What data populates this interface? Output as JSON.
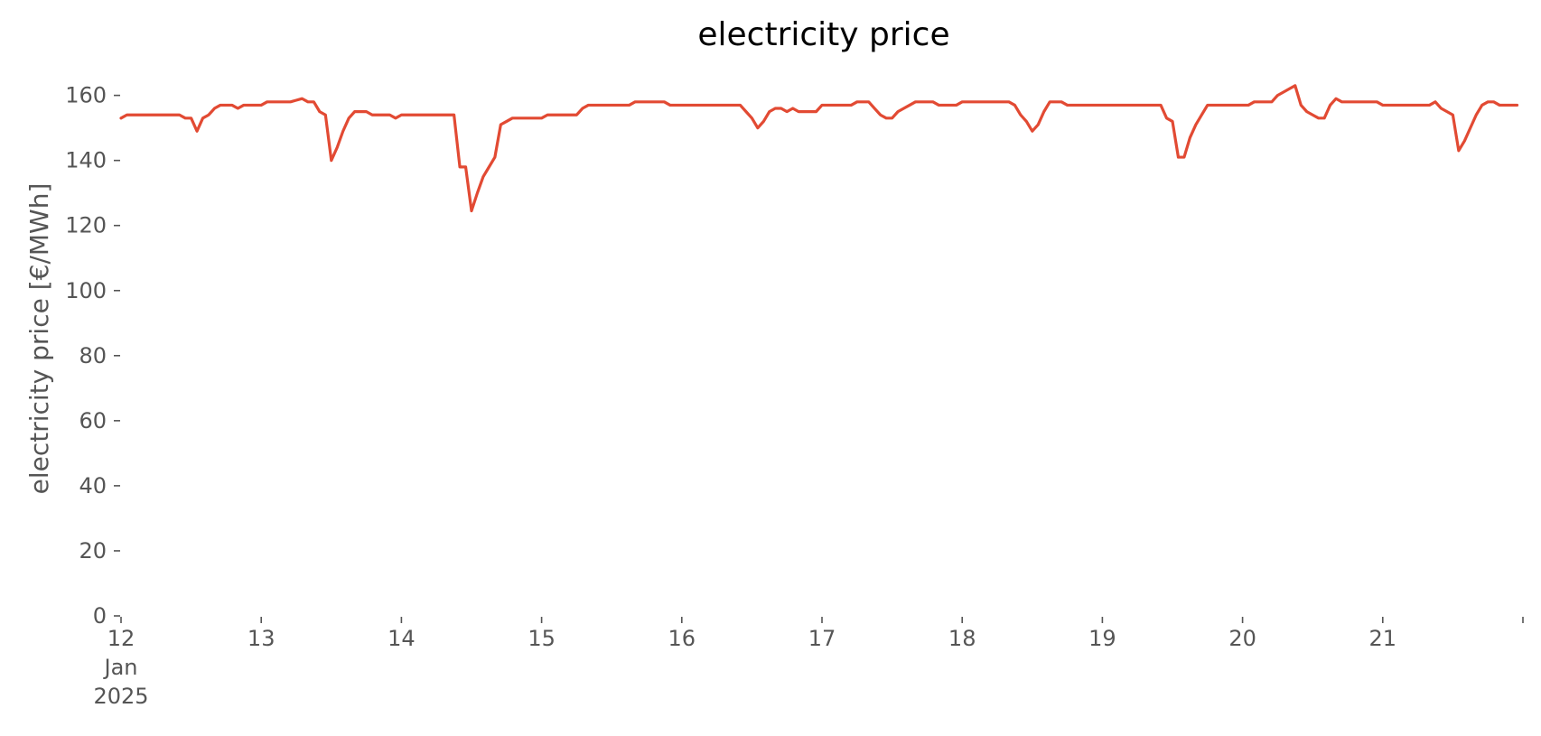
{
  "chart_data": {
    "type": "line",
    "title": "electricity price",
    "xlabel": "",
    "ylabel": "electricity price [€/MWh]",
    "xlim": [
      "2025-01-12",
      "2025-01-22"
    ],
    "ylim": [
      0,
      166
    ],
    "x_ticks": [
      {
        "value": "2025-01-12",
        "label": "12",
        "sublabels": [
          "Jan",
          "2025"
        ]
      },
      {
        "value": "2025-01-13",
        "label": "13"
      },
      {
        "value": "2025-01-14",
        "label": "14"
      },
      {
        "value": "2025-01-15",
        "label": "15"
      },
      {
        "value": "2025-01-16",
        "label": "16"
      },
      {
        "value": "2025-01-17",
        "label": "17"
      },
      {
        "value": "2025-01-18",
        "label": "18"
      },
      {
        "value": "2025-01-19",
        "label": "19"
      },
      {
        "value": "2025-01-20",
        "label": "20"
      },
      {
        "value": "2025-01-21",
        "label": "21"
      },
      {
        "value": "2025-01-22",
        "label": ""
      }
    ],
    "y_ticks": [
      0,
      20,
      40,
      60,
      80,
      100,
      120,
      140,
      160
    ],
    "grid": false,
    "colors": {
      "line": "#E24A33"
    },
    "series": [
      {
        "x": [
          "2025-01-12 00:00",
          "2025-01-12 01:00",
          "2025-01-12 02:00",
          "2025-01-12 03:00",
          "2025-01-12 04:00",
          "2025-01-12 05:00",
          "2025-01-12 06:00",
          "2025-01-12 07:00",
          "2025-01-12 08:00",
          "2025-01-12 09:00",
          "2025-01-12 10:00",
          "2025-01-12 11:00",
          "2025-01-12 12:00",
          "2025-01-12 13:00",
          "2025-01-12 14:00",
          "2025-01-12 15:00",
          "2025-01-12 16:00",
          "2025-01-12 17:00",
          "2025-01-12 18:00",
          "2025-01-12 19:00",
          "2025-01-12 20:00",
          "2025-01-12 21:00",
          "2025-01-12 22:00",
          "2025-01-12 23:00",
          "2025-01-13 00:00",
          "2025-01-13 01:00",
          "2025-01-13 02:00",
          "2025-01-13 03:00",
          "2025-01-13 04:00",
          "2025-01-13 05:00",
          "2025-01-13 06:00",
          "2025-01-13 07:00",
          "2025-01-13 08:00",
          "2025-01-13 09:00",
          "2025-01-13 10:00",
          "2025-01-13 11:00",
          "2025-01-13 12:00",
          "2025-01-13 13:00",
          "2025-01-13 14:00",
          "2025-01-13 15:00",
          "2025-01-13 16:00",
          "2025-01-13 17:00",
          "2025-01-13 18:00",
          "2025-01-13 19:00",
          "2025-01-13 20:00",
          "2025-01-13 21:00",
          "2025-01-13 22:00",
          "2025-01-13 23:00",
          "2025-01-14 00:00",
          "2025-01-14 01:00",
          "2025-01-14 02:00",
          "2025-01-14 03:00",
          "2025-01-14 04:00",
          "2025-01-14 05:00",
          "2025-01-14 06:00",
          "2025-01-14 07:00",
          "2025-01-14 08:00",
          "2025-01-14 09:00",
          "2025-01-14 10:00",
          "2025-01-14 11:00",
          "2025-01-14 12:00",
          "2025-01-14 13:00",
          "2025-01-14 14:00",
          "2025-01-14 15:00",
          "2025-01-14 16:00",
          "2025-01-14 17:00",
          "2025-01-14 18:00",
          "2025-01-14 19:00",
          "2025-01-14 20:00",
          "2025-01-14 21:00",
          "2025-01-14 22:00",
          "2025-01-14 23:00",
          "2025-01-15 00:00",
          "2025-01-15 01:00",
          "2025-01-15 02:00",
          "2025-01-15 03:00",
          "2025-01-15 04:00",
          "2025-01-15 05:00",
          "2025-01-15 06:00",
          "2025-01-15 07:00",
          "2025-01-15 08:00",
          "2025-01-15 09:00",
          "2025-01-15 10:00",
          "2025-01-15 11:00",
          "2025-01-15 12:00",
          "2025-01-15 13:00",
          "2025-01-15 14:00",
          "2025-01-15 15:00",
          "2025-01-15 16:00",
          "2025-01-15 17:00",
          "2025-01-15 18:00",
          "2025-01-15 19:00",
          "2025-01-15 20:00",
          "2025-01-15 21:00",
          "2025-01-15 22:00",
          "2025-01-15 23:00",
          "2025-01-16 00:00",
          "2025-01-16 01:00",
          "2025-01-16 02:00",
          "2025-01-16 03:00",
          "2025-01-16 04:00",
          "2025-01-16 05:00",
          "2025-01-16 06:00",
          "2025-01-16 07:00",
          "2025-01-16 08:00",
          "2025-01-16 09:00",
          "2025-01-16 10:00",
          "2025-01-16 11:00",
          "2025-01-16 12:00",
          "2025-01-16 13:00",
          "2025-01-16 14:00",
          "2025-01-16 15:00",
          "2025-01-16 16:00",
          "2025-01-16 17:00",
          "2025-01-16 18:00",
          "2025-01-16 19:00",
          "2025-01-16 20:00",
          "2025-01-16 21:00",
          "2025-01-16 22:00",
          "2025-01-16 23:00",
          "2025-01-17 00:00",
          "2025-01-17 01:00",
          "2025-01-17 02:00",
          "2025-01-17 03:00",
          "2025-01-17 04:00",
          "2025-01-17 05:00",
          "2025-01-17 06:00",
          "2025-01-17 07:00",
          "2025-01-17 08:00",
          "2025-01-17 09:00",
          "2025-01-17 10:00",
          "2025-01-17 11:00",
          "2025-01-17 12:00",
          "2025-01-17 13:00",
          "2025-01-17 14:00",
          "2025-01-17 15:00",
          "2025-01-17 16:00",
          "2025-01-17 17:00",
          "2025-01-17 18:00",
          "2025-01-17 19:00",
          "2025-01-17 20:00",
          "2025-01-17 21:00",
          "2025-01-17 22:00",
          "2025-01-17 23:00",
          "2025-01-18 00:00",
          "2025-01-18 01:00",
          "2025-01-18 02:00",
          "2025-01-18 03:00",
          "2025-01-18 04:00",
          "2025-01-18 05:00",
          "2025-01-18 06:00",
          "2025-01-18 07:00",
          "2025-01-18 08:00",
          "2025-01-18 09:00",
          "2025-01-18 10:00",
          "2025-01-18 11:00",
          "2025-01-18 12:00",
          "2025-01-18 13:00",
          "2025-01-18 14:00",
          "2025-01-18 15:00",
          "2025-01-18 16:00",
          "2025-01-18 17:00",
          "2025-01-18 18:00",
          "2025-01-18 19:00",
          "2025-01-18 20:00",
          "2025-01-18 21:00",
          "2025-01-18 22:00",
          "2025-01-18 23:00",
          "2025-01-19 00:00",
          "2025-01-19 01:00",
          "2025-01-19 02:00",
          "2025-01-19 03:00",
          "2025-01-19 04:00",
          "2025-01-19 05:00",
          "2025-01-19 06:00",
          "2025-01-19 07:00",
          "2025-01-19 08:00",
          "2025-01-19 09:00",
          "2025-01-19 10:00",
          "2025-01-19 11:00",
          "2025-01-19 12:00",
          "2025-01-19 13:00",
          "2025-01-19 14:00",
          "2025-01-19 15:00",
          "2025-01-19 16:00",
          "2025-01-19 17:00",
          "2025-01-19 18:00",
          "2025-01-19 19:00",
          "2025-01-19 20:00",
          "2025-01-19 21:00",
          "2025-01-19 22:00",
          "2025-01-19 23:00",
          "2025-01-20 00:00",
          "2025-01-20 01:00",
          "2025-01-20 02:00",
          "2025-01-20 03:00",
          "2025-01-20 04:00",
          "2025-01-20 05:00",
          "2025-01-20 06:00",
          "2025-01-20 07:00",
          "2025-01-20 08:00",
          "2025-01-20 09:00",
          "2025-01-20 10:00",
          "2025-01-20 11:00",
          "2025-01-20 12:00",
          "2025-01-20 13:00",
          "2025-01-20 14:00",
          "2025-01-20 15:00",
          "2025-01-20 16:00",
          "2025-01-20 17:00",
          "2025-01-20 18:00",
          "2025-01-20 19:00",
          "2025-01-20 20:00",
          "2025-01-20 21:00",
          "2025-01-20 22:00",
          "2025-01-20 23:00",
          "2025-01-21 00:00",
          "2025-01-21 01:00",
          "2025-01-21 02:00",
          "2025-01-21 03:00",
          "2025-01-21 04:00",
          "2025-01-21 05:00",
          "2025-01-21 06:00",
          "2025-01-21 07:00",
          "2025-01-21 08:00",
          "2025-01-21 09:00",
          "2025-01-21 10:00",
          "2025-01-21 11:00",
          "2025-01-21 12:00",
          "2025-01-21 13:00",
          "2025-01-21 14:00",
          "2025-01-21 15:00",
          "2025-01-21 16:00",
          "2025-01-21 17:00",
          "2025-01-21 18:00",
          "2025-01-21 19:00",
          "2025-01-21 20:00",
          "2025-01-21 21:00",
          "2025-01-21 22:00",
          "2025-01-21 23:00"
        ],
        "values": [
          153,
          154,
          154,
          154,
          154,
          154,
          154,
          154,
          154,
          154,
          154,
          153,
          153,
          149,
          153,
          154,
          156,
          157,
          157,
          157,
          156,
          157,
          157,
          157,
          157,
          158,
          158,
          158,
          158,
          158,
          158.5,
          159,
          158,
          158,
          155,
          154,
          140,
          144,
          149,
          153,
          155,
          155,
          155,
          154,
          154,
          154,
          154,
          153,
          154,
          154,
          154,
          154,
          154,
          154,
          154,
          154,
          154,
          154,
          138,
          138,
          124.5,
          130,
          135,
          138,
          141,
          151,
          152,
          153,
          153,
          153,
          153,
          153,
          153,
          154,
          154,
          154,
          154,
          154,
          154,
          156,
          157,
          157,
          157,
          157,
          157,
          157,
          157,
          157,
          158,
          158,
          158,
          158,
          158,
          158,
          157,
          157,
          157,
          157,
          157,
          157,
          157,
          157,
          157,
          157,
          157,
          157,
          157,
          155,
          153,
          150,
          152,
          155,
          156,
          156,
          155,
          156,
          155,
          155,
          155,
          155,
          157,
          157,
          157,
          157,
          157,
          157,
          158,
          158,
          158,
          156,
          154,
          153,
          153,
          155,
          156,
          157,
          158,
          158,
          158,
          158,
          157,
          157,
          157,
          157,
          158,
          158,
          158,
          158,
          158,
          158,
          158,
          158,
          158,
          157,
          154,
          152,
          149,
          151,
          155,
          158,
          158,
          158,
          157,
          157,
          157,
          157,
          157,
          157,
          157,
          157,
          157,
          157,
          157,
          157,
          157,
          157,
          157,
          157,
          157,
          153,
          152,
          141,
          141,
          147,
          151,
          154,
          157,
          157,
          157,
          157,
          157,
          157,
          157,
          157,
          158,
          158,
          158,
          158,
          160,
          161,
          162,
          163,
          157,
          155,
          154,
          153,
          153,
          157,
          159,
          158,
          158,
          158,
          158,
          158,
          158,
          158,
          157,
          157,
          157,
          157,
          157,
          157,
          157,
          157,
          157,
          158,
          156,
          155,
          154,
          143,
          146,
          150,
          154,
          157,
          158,
          158,
          157,
          157,
          157,
          157
        ]
      }
    ]
  }
}
